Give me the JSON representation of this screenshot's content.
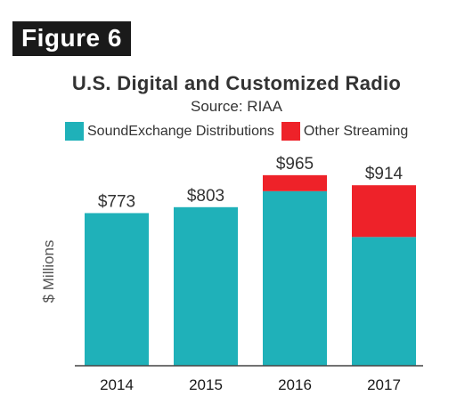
{
  "figure_label": "Figure 6",
  "chart_data": {
    "type": "bar",
    "stacked": true,
    "title": "U.S. Digital and Customized Radio",
    "subtitle": "Source: RIAA",
    "xlabel": "",
    "ylabel": "$ Millions",
    "categories": [
      "2014",
      "2015",
      "2016",
      "2017"
    ],
    "series": [
      {
        "name": "SoundExchange Distributions",
        "color": "#1fb1b9",
        "values": [
          773,
          803,
          884,
          652
        ]
      },
      {
        "name": "Other Streaming",
        "color": "#ee2229",
        "values": [
          0,
          0,
          81,
          262
        ]
      }
    ],
    "totals": [
      773,
      803,
      965,
      914
    ],
    "total_labels": [
      "$773",
      "$803",
      "$965",
      "$914"
    ],
    "ylim": [
      0,
      1050
    ],
    "grid": false,
    "legend_position": "top-left"
  }
}
